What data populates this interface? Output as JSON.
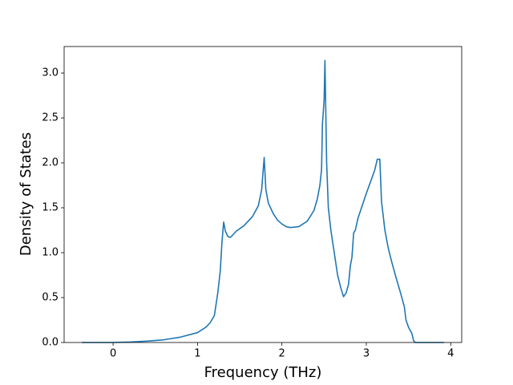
{
  "chart_data": {
    "type": "line",
    "xlabel": "Frequency (THz)",
    "ylabel": "Density of States",
    "xlim": [
      -0.58,
      4.13
    ],
    "ylim": [
      0,
      3.295
    ],
    "xticks": [
      0,
      1,
      2,
      3,
      4
    ],
    "yticks": [
      {
        "value": 0,
        "label": "0.0"
      },
      {
        "value": 0.5,
        "label": "0.5"
      },
      {
        "value": 1,
        "label": "1.0"
      },
      {
        "value": 1.5,
        "label": "1.5"
      },
      {
        "value": 2,
        "label": "2.0"
      },
      {
        "value": 2.5,
        "label": "2.5"
      },
      {
        "value": 3,
        "label": "3.0"
      }
    ],
    "color": "#1f77b4",
    "x": [
      -0.37,
      0,
      0.2,
      0.4,
      0.6,
      0.8,
      1.0,
      1.1,
      1.15,
      1.2,
      1.24,
      1.27,
      1.29,
      1.31,
      1.33,
      1.36,
      1.39,
      1.42,
      1.46,
      1.55,
      1.65,
      1.72,
      1.76,
      1.79,
      1.81,
      1.84,
      1.9,
      1.95,
      2.0,
      2.05,
      2.1,
      2.2,
      2.3,
      2.38,
      2.42,
      2.45,
      2.47,
      2.48,
      2.5,
      2.51,
      2.53,
      2.55,
      2.58,
      2.62,
      2.66,
      2.7,
      2.73,
      2.76,
      2.79,
      2.81,
      2.83,
      2.85,
      2.87,
      2.9,
      2.95,
      3.0,
      3.05,
      3.1,
      3.13,
      3.16,
      3.18,
      3.22,
      3.26,
      3.3,
      3.35,
      3.4,
      3.45,
      3.47,
      3.5,
      3.54,
      3.56,
      3.58,
      3.92
    ],
    "values": [
      0,
      0,
      0.005,
      0.015,
      0.03,
      0.06,
      0.11,
      0.17,
      0.22,
      0.3,
      0.55,
      0.8,
      1.12,
      1.34,
      1.24,
      1.18,
      1.17,
      1.2,
      1.24,
      1.3,
      1.4,
      1.52,
      1.7,
      2.06,
      1.7,
      1.55,
      1.43,
      1.36,
      1.32,
      1.29,
      1.28,
      1.29,
      1.35,
      1.47,
      1.6,
      1.75,
      1.93,
      2.43,
      2.7,
      3.14,
      2.0,
      1.5,
      1.25,
      1.0,
      0.75,
      0.6,
      0.51,
      0.55,
      0.65,
      0.85,
      0.95,
      1.22,
      1.25,
      1.38,
      1.52,
      1.66,
      1.79,
      1.92,
      2.04,
      2.04,
      1.57,
      1.25,
      1.05,
      0.9,
      0.73,
      0.57,
      0.4,
      0.25,
      0.17,
      0.1,
      0.02,
      0,
      0
    ]
  }
}
